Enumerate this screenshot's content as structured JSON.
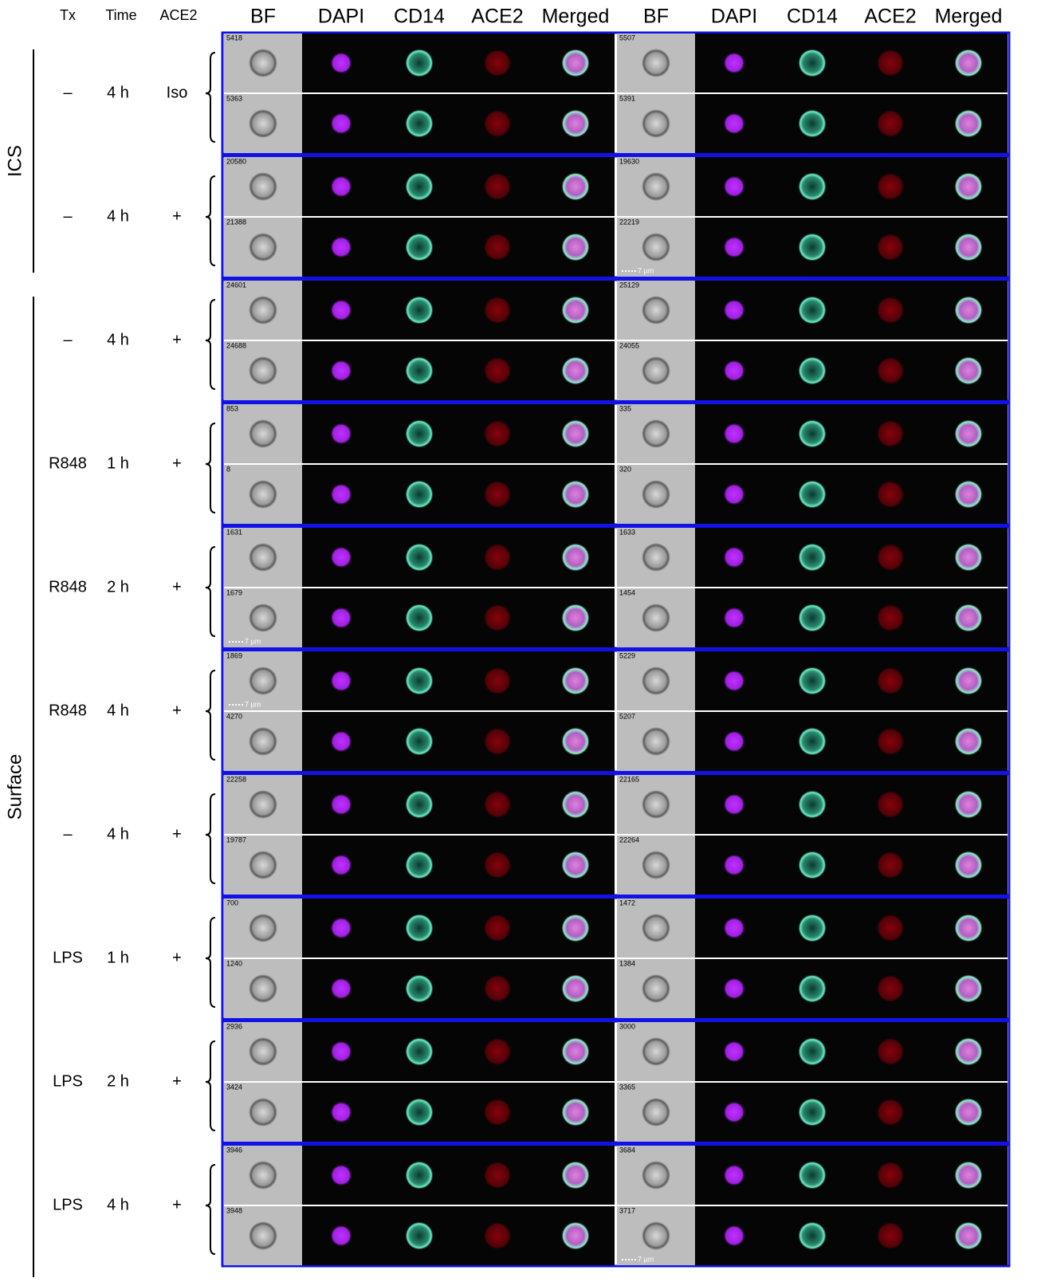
{
  "header": {
    "row_columns": [
      "Tx",
      "Time",
      "ACE2"
    ],
    "panel_columns_left": [
      "BF",
      "DAPI",
      "CD14",
      "ACE2",
      "Merged"
    ],
    "panel_columns_right": [
      "BF",
      "DAPI",
      "CD14",
      "ACE2",
      "Merged"
    ]
  },
  "groups": [
    {
      "label": "ICS",
      "rows": [
        0,
        1
      ]
    },
    {
      "label": "Surface",
      "rows": [
        2,
        9
      ]
    }
  ],
  "rows": [
    {
      "tx": "–",
      "time": "4 h",
      "ace2": "Iso",
      "left": [
        {
          "id": "5418"
        },
        {
          "id": "5363"
        }
      ],
      "right": [
        {
          "id": "5507"
        },
        {
          "id": "5391"
        }
      ]
    },
    {
      "tx": "–",
      "time": "4 h",
      "ace2": "+",
      "left": [
        {
          "id": "20580"
        },
        {
          "id": "21388"
        }
      ],
      "right": [
        {
          "id": "19630"
        },
        {
          "id": "22219",
          "scale_bar": "7 µm"
        }
      ]
    },
    {
      "tx": "–",
      "time": "4 h",
      "ace2": "+",
      "left": [
        {
          "id": "24601"
        },
        {
          "id": "24688"
        }
      ],
      "right": [
        {
          "id": "25129"
        },
        {
          "id": "24055"
        }
      ]
    },
    {
      "tx": "R848",
      "time": "1 h",
      "ace2": "+",
      "left": [
        {
          "id": "853"
        },
        {
          "id": "8"
        }
      ],
      "right": [
        {
          "id": "335"
        },
        {
          "id": "320"
        }
      ]
    },
    {
      "tx": "R848",
      "time": "2 h",
      "ace2": "+",
      "left": [
        {
          "id": "1631"
        },
        {
          "id": "1679",
          "scale_bar": "7 µm"
        }
      ],
      "right": [
        {
          "id": "1633"
        },
        {
          "id": "1454"
        }
      ]
    },
    {
      "tx": "R848",
      "time": "4 h",
      "ace2": "+",
      "left": [
        {
          "id": "1869",
          "scale_bar": "7 µm"
        },
        {
          "id": "4270"
        }
      ],
      "right": [
        {
          "id": "5229"
        },
        {
          "id": "5207"
        }
      ]
    },
    {
      "tx": "–",
      "time": "4 h",
      "ace2": "+",
      "left": [
        {
          "id": "22258"
        },
        {
          "id": "19787"
        }
      ],
      "right": [
        {
          "id": "22165"
        },
        {
          "id": "22264"
        }
      ]
    },
    {
      "tx": "LPS",
      "time": "1 h",
      "ace2": "+",
      "left": [
        {
          "id": "700"
        },
        {
          "id": "1240"
        }
      ],
      "right": [
        {
          "id": "1472"
        },
        {
          "id": "1384"
        }
      ]
    },
    {
      "tx": "LPS",
      "time": "2 h",
      "ace2": "+",
      "left": [
        {
          "id": "2936"
        },
        {
          "id": "3424"
        }
      ],
      "right": [
        {
          "id": "3000"
        },
        {
          "id": "3365"
        }
      ]
    },
    {
      "tx": "LPS",
      "time": "4 h",
      "ace2": "+",
      "left": [
        {
          "id": "3946"
        },
        {
          "id": "3948"
        }
      ],
      "right": [
        {
          "id": "3684"
        },
        {
          "id": "3717",
          "scale_bar": "7 µm"
        }
      ]
    }
  ]
}
